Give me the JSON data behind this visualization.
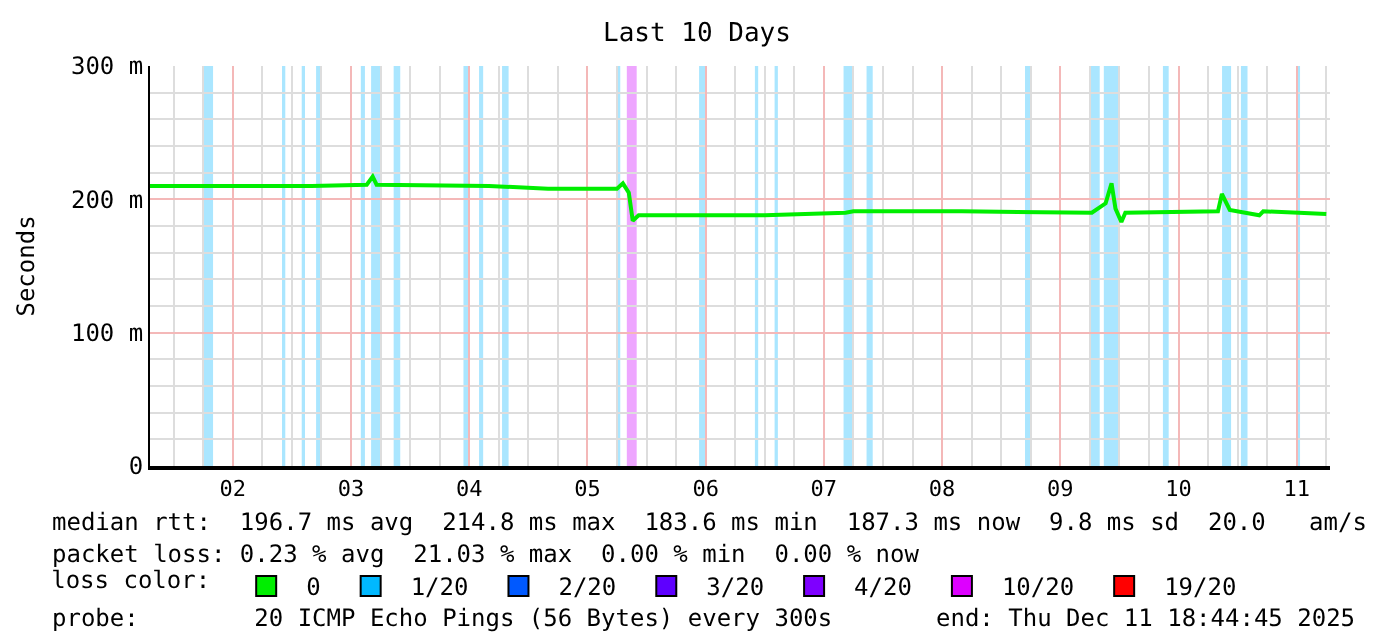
{
  "chart_data": {
    "type": "line",
    "title": "Last 10 Days",
    "ylabel": "Seconds",
    "xlim": [
      "2025-12-01T19:12",
      "2025-12-11T18:45"
    ],
    "xticks": [
      {
        "value": "2025-12-02T12:00",
        "label": "02"
      },
      {
        "value": "2025-12-03T12:00",
        "label": "03"
      },
      {
        "value": "2025-12-04T12:00",
        "label": "04"
      },
      {
        "value": "2025-12-05T12:00",
        "label": "05"
      },
      {
        "value": "2025-12-06T12:00",
        "label": "06"
      },
      {
        "value": "2025-12-07T12:00",
        "label": "07"
      },
      {
        "value": "2025-12-08T12:00",
        "label": "08"
      },
      {
        "value": "2025-12-09T12:00",
        "label": "09"
      },
      {
        "value": "2025-12-10T12:00",
        "label": "10"
      },
      {
        "value": "2025-12-11T12:00",
        "label": "11"
      }
    ],
    "ylim": [
      0,
      300
    ],
    "yticks": [
      0,
      {
        "value": 100,
        "label": "100 m"
      },
      {
        "value": 200,
        "label": "200 m"
      },
      {
        "value": 300,
        "label": "300 m"
      }
    ],
    "grid": true,
    "legend": "bottom",
    "legend_title": "loss color:",
    "series": [
      {
        "name": "0",
        "color": "#00ee00",
        "x": [
          "2025-12-01T19:12",
          "2025-12-03T04:00",
          "2025-12-03T15:12",
          "2025-12-03T16:24",
          "2025-12-03T17:12",
          "2025-12-04T16:00",
          "2025-12-05T04:00",
          "2025-12-05T18:00",
          "2025-12-05T19:12",
          "2025-12-05T20:24",
          "2025-12-05T21:12",
          "2025-12-05T22:24",
          "2025-12-07T00:00",
          "2025-12-07T16:24",
          "2025-12-07T18:00",
          "2025-12-08T16:00",
          "2025-12-09T18:24",
          "2025-12-09T21:12",
          "2025-12-09T22:24",
          "2025-12-09T23:12",
          "2025-12-10T00:24",
          "2025-12-10T01:12",
          "2025-12-10T20:00",
          "2025-12-10T20:48",
          "2025-12-10T22:24",
          "2025-12-11T04:24",
          "2025-12-11T05:12",
          "2025-12-11T12:24",
          "2025-12-11T18:00"
        ],
        "values": [
          210,
          210,
          211,
          217,
          211,
          210,
          208,
          208,
          212,
          205,
          184,
          188,
          188,
          190,
          191,
          191,
          190,
          197,
          212,
          193,
          183,
          190,
          191,
          204,
          192,
          188,
          191,
          190,
          189
        ]
      },
      {
        "name": "1/20",
        "color": "#00b8ff"
      },
      {
        "name": "2/20",
        "color": "#0059ff"
      },
      {
        "name": "3/20",
        "color": "#5e00ff"
      },
      {
        "name": "4/20",
        "color": "#7e00ff"
      },
      {
        "name": "10/20",
        "color": "#dd00ff"
      },
      {
        "name": "19/20",
        "color": "#ff0000"
      }
    ],
    "bands": [
      {
        "axis": "x",
        "from": "2025-12-02T06:00",
        "to": "2025-12-02T08:00",
        "color": "#aae6ff"
      },
      {
        "axis": "x",
        "from": "2025-12-02T22:00",
        "to": "2025-12-02T22:40",
        "color": "#aae6ff"
      },
      {
        "axis": "x",
        "from": "2025-12-03T02:00",
        "to": "2025-12-03T02:40",
        "color": "#aae6ff"
      },
      {
        "axis": "x",
        "from": "2025-12-03T04:55",
        "to": "2025-12-03T06:05",
        "color": "#aae6ff"
      },
      {
        "axis": "x",
        "from": "2025-12-03T14:00",
        "to": "2025-12-03T14:50",
        "color": "#aae6ff"
      },
      {
        "axis": "x",
        "from": "2025-12-03T16:05",
        "to": "2025-12-03T18:05",
        "color": "#aae6ff"
      },
      {
        "axis": "x",
        "from": "2025-12-03T20:40",
        "to": "2025-12-03T22:00",
        "color": "#aae6ff"
      },
      {
        "axis": "x",
        "from": "2025-12-04T10:50",
        "to": "2025-12-04T12:05",
        "color": "#aae6ff"
      },
      {
        "axis": "x",
        "from": "2025-12-04T14:00",
        "to": "2025-12-04T14:50",
        "color": "#aae6ff"
      },
      {
        "axis": "x",
        "from": "2025-12-04T18:40",
        "to": "2025-12-04T20:00",
        "color": "#aae6ff"
      },
      {
        "axis": "x",
        "from": "2025-12-05T18:00",
        "to": "2025-12-05T18:40",
        "color": "#aae6ff"
      },
      {
        "axis": "x",
        "from": "2025-12-05T20:00",
        "to": "2025-12-05T22:00",
        "color": "#eea6ff"
      },
      {
        "axis": "x",
        "from": "2025-12-06T10:40",
        "to": "2025-12-06T12:00",
        "color": "#aae6ff"
      },
      {
        "axis": "x",
        "from": "2025-12-06T22:00",
        "to": "2025-12-06T22:40",
        "color": "#aae6ff"
      },
      {
        "axis": "x",
        "from": "2025-12-07T02:00",
        "to": "2025-12-07T02:40",
        "color": "#aae6ff"
      },
      {
        "axis": "x",
        "from": "2025-12-07T16:00",
        "to": "2025-12-07T18:05",
        "color": "#aae6ff"
      },
      {
        "axis": "x",
        "from": "2025-12-07T20:40",
        "to": "2025-12-07T21:55",
        "color": "#aae6ff"
      },
      {
        "axis": "x",
        "from": "2025-12-09T04:50",
        "to": "2025-12-09T06:05",
        "color": "#aae6ff"
      },
      {
        "axis": "x",
        "from": "2025-12-09T18:00",
        "to": "2025-12-09T20:00",
        "color": "#aae6ff"
      },
      {
        "axis": "x",
        "from": "2025-12-09T20:50",
        "to": "2025-12-10T00:00",
        "color": "#aae6ff"
      },
      {
        "axis": "x",
        "from": "2025-12-10T08:50",
        "to": "2025-12-10T10:00",
        "color": "#aae6ff"
      },
      {
        "axis": "x",
        "from": "2025-12-10T20:50",
        "to": "2025-12-10T22:40",
        "color": "#aae6ff"
      },
      {
        "axis": "x",
        "from": "2025-12-11T00:40",
        "to": "2025-12-11T02:00",
        "color": "#aae6ff"
      },
      {
        "axis": "x",
        "from": "2025-12-11T12:00",
        "to": "2025-12-11T12:40",
        "color": "#aae6ff"
      }
    ],
    "annotations": [
      "median rtt:  196.7 ms avg  214.8 ms max  183.6 ms min  187.3 ms now  9.8 ms sd  20.0   am/s",
      "packet loss: 0.23 % avg  21.03 % max  0.00 % min  0.00 % now",
      "probe:        20 ICMP Echo Pings (56 Bytes) every 300s",
      "end: Thu Dec 11 18:44:45 2025"
    ]
  }
}
